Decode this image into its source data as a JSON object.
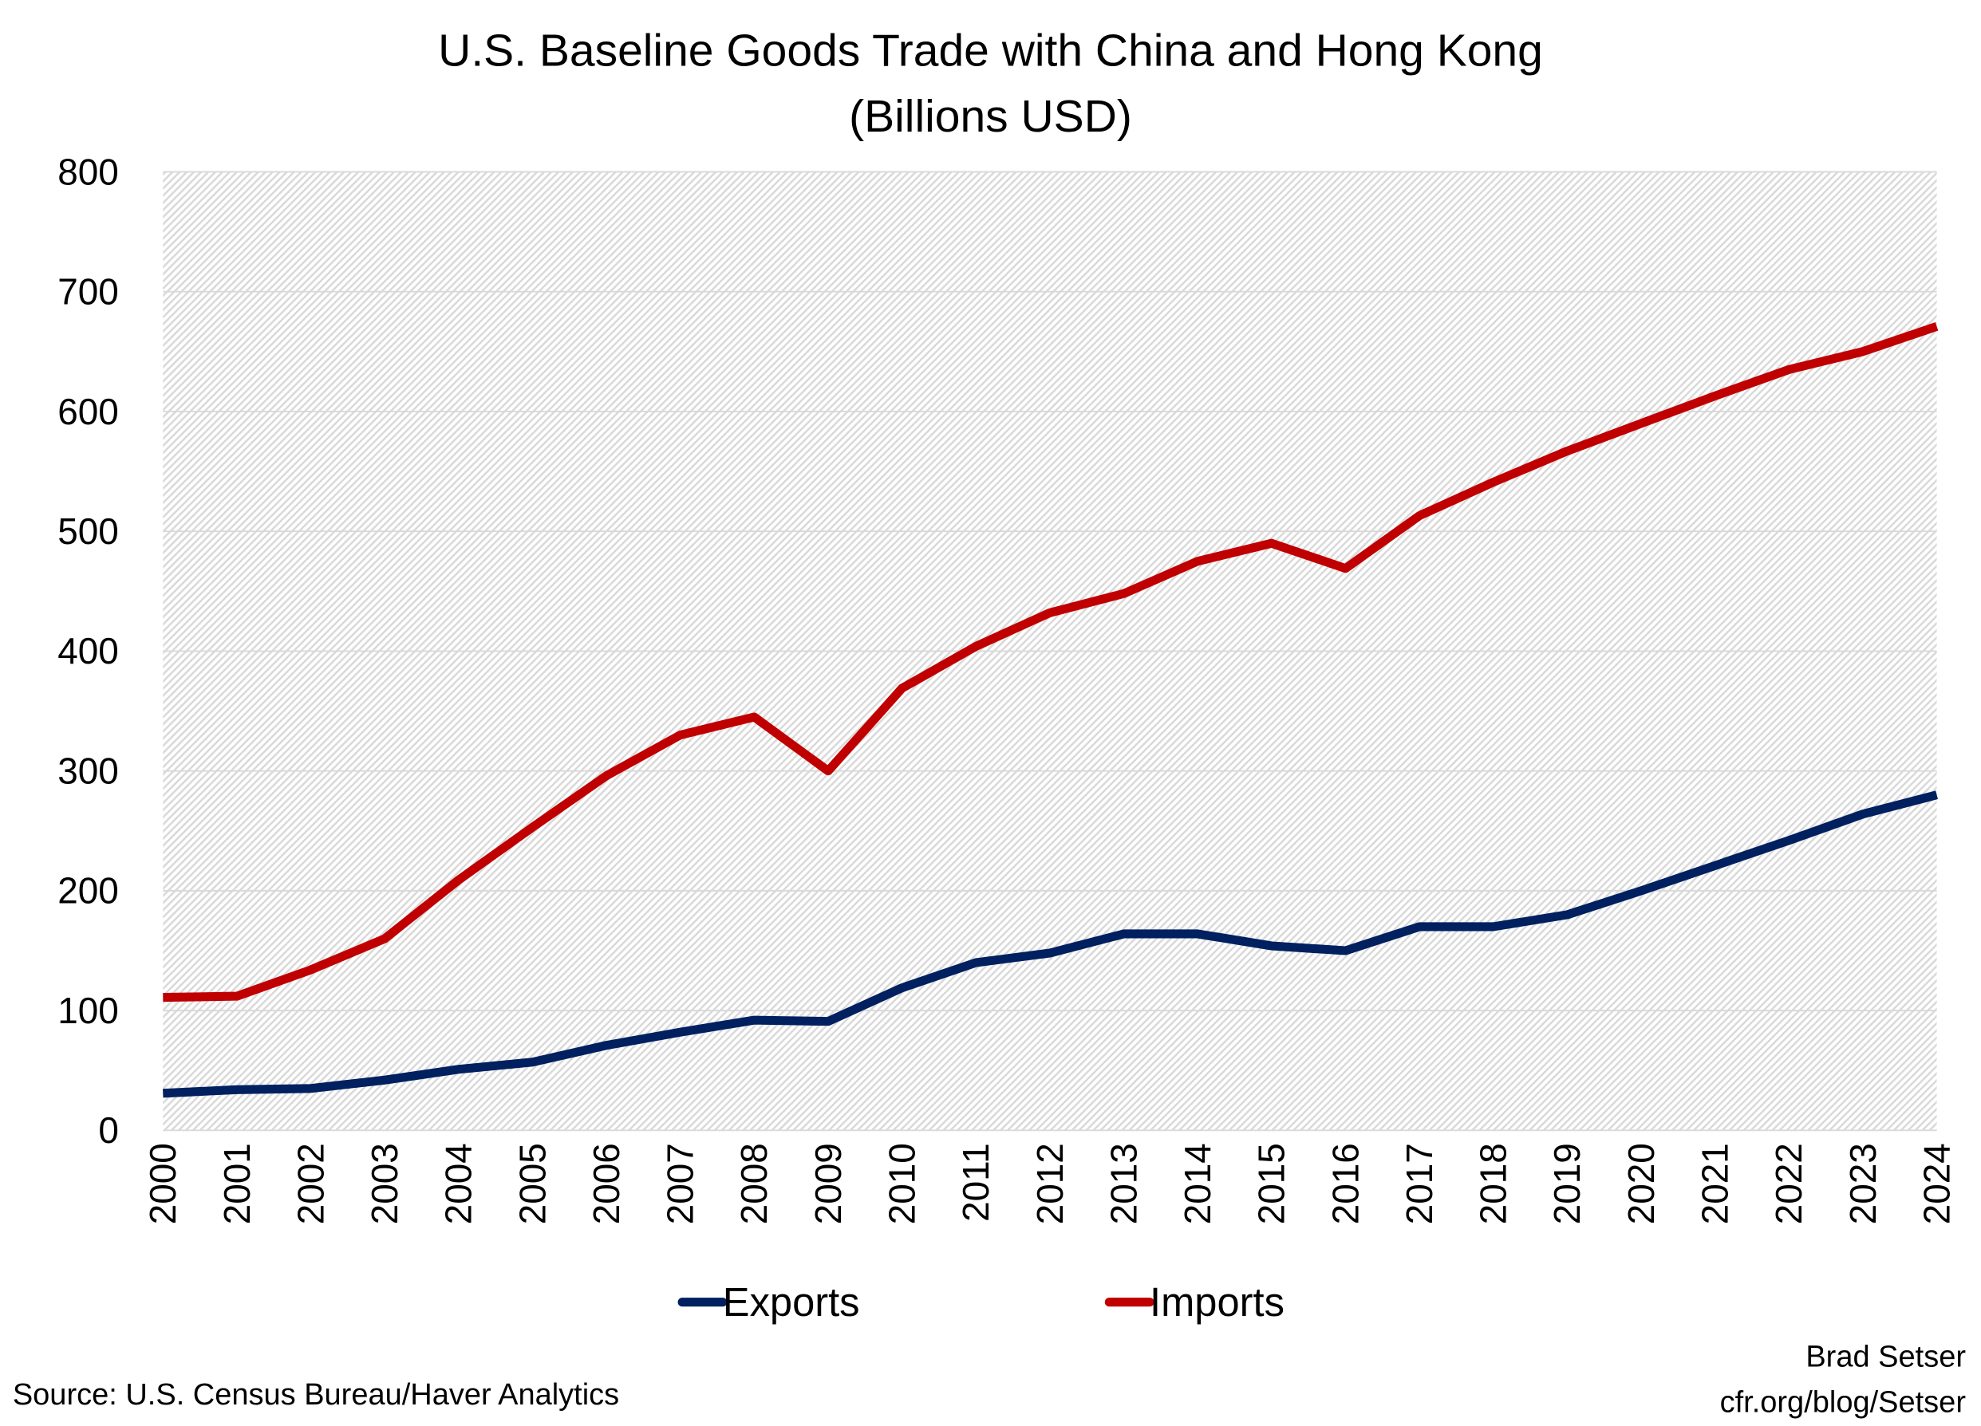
{
  "chart_data": {
    "type": "line",
    "title": "U.S. Baseline Goods Trade with China and Hong Kong",
    "subtitle": "(Billions USD)",
    "xlabel": "",
    "ylabel": "",
    "ylim": [
      0,
      800
    ],
    "yticks": [
      "0",
      "100",
      "200",
      "300",
      "400",
      "500",
      "600",
      "700",
      "800"
    ],
    "x": [
      "2000",
      "2001",
      "2002",
      "2003",
      "2004",
      "2005",
      "2006",
      "2007",
      "2008",
      "2009",
      "2010",
      "2011",
      "2012",
      "2013",
      "2014",
      "2015",
      "2016",
      "2017",
      "2018",
      "2019",
      "2020",
      "2021",
      "2022",
      "2023",
      "2024"
    ],
    "grid": true,
    "legend_placement": "bottom",
    "series": [
      {
        "name": "Exports",
        "color": "#002060",
        "values": [
          31,
          34,
          35,
          42,
          51,
          57,
          71,
          82,
          92,
          91,
          119,
          140,
          148,
          164,
          164,
          154,
          150,
          170,
          170,
          180,
          200,
          221,
          242,
          264,
          280
        ]
      },
      {
        "name": "Imports",
        "color": "#C00000",
        "values": [
          111,
          112,
          134,
          160,
          209,
          253,
          296,
          330,
          345,
          300,
          369,
          404,
          432,
          448,
          475,
          490,
          469,
          513,
          541,
          567,
          590,
          613,
          635,
          650,
          671
        ]
      }
    ]
  },
  "footer": {
    "source": "Source: U.S. Census Bureau/Haver Analytics",
    "author": "Brad Setser",
    "site": "cfr.org/blog/Setser"
  }
}
